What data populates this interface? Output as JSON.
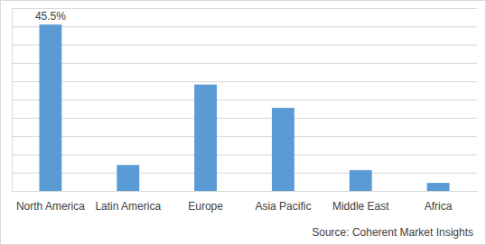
{
  "chart_data": {
    "type": "bar",
    "categories": [
      "North America",
      "Latin America",
      "Europe",
      "Asia Pacific",
      "Middle East",
      "Africa"
    ],
    "values": [
      45.5,
      7.1,
      29.1,
      22.7,
      5.7,
      2.2
    ],
    "value_labels": [
      "45.5%",
      null,
      null,
      null,
      null,
      null
    ],
    "data_labels": true,
    "color": "#5b9bd5",
    "ylim": [
      0,
      50
    ],
    "yticks": [
      0,
      5,
      10,
      15,
      20,
      25,
      30,
      35,
      40,
      45,
      50
    ],
    "grid": true,
    "tick_labels": "x",
    "source": "Source: Coherent Market Insights"
  }
}
